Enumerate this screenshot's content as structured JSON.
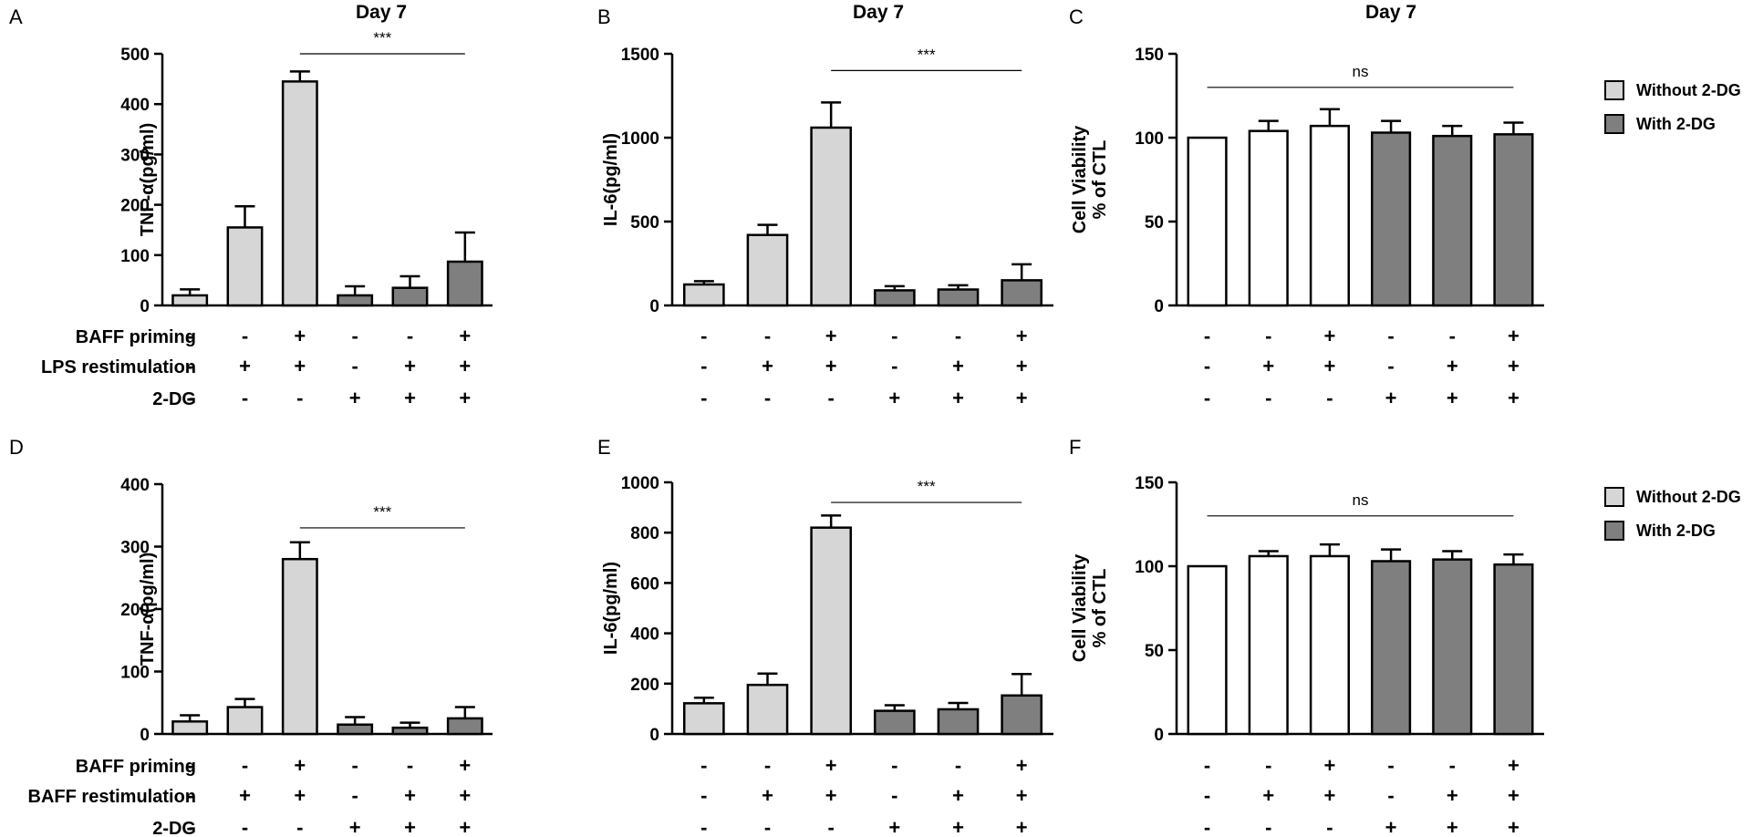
{
  "row_labels": {
    "top": [
      "BAFF priming",
      "LPS restimulation",
      "2-DG"
    ],
    "bottom": [
      "BAFF priming",
      "BAFF restimulation",
      "2-DG"
    ]
  },
  "legend": [
    {
      "label": "Without 2-DG",
      "color": "#d6d6d6"
    },
    {
      "label": "With 2-DG",
      "color": "#7f7f7f"
    }
  ],
  "colors": {
    "light": "#d6d6d6",
    "dark": "#7f7f7f",
    "white": "#ffffff",
    "stroke": "#000000"
  },
  "chart_data": [
    {
      "panel": "A",
      "type": "bar",
      "title": "Day 7",
      "ylabel": "TNF-α(pg/ml)",
      "ylim": [
        0,
        500
      ],
      "yticks": [
        0,
        100,
        200,
        300,
        400,
        500
      ],
      "values": [
        20,
        155,
        445,
        20,
        35,
        87
      ],
      "errors": [
        12,
        42,
        20,
        18,
        23,
        58
      ],
      "fills": [
        "light",
        "light",
        "light",
        "dark",
        "dark",
        "dark"
      ],
      "treatments": [
        [
          "-",
          "-",
          "+",
          "-",
          "-",
          "+"
        ],
        [
          "-",
          "+",
          "+",
          "-",
          "+",
          "+"
        ],
        [
          "-",
          "-",
          "-",
          "+",
          "+",
          "+"
        ]
      ],
      "significance": {
        "label": "***",
        "from": 2,
        "to": 5,
        "y": 500
      }
    },
    {
      "panel": "B",
      "type": "bar",
      "title": "Day 7",
      "ylabel": "IL-6(pg/ml)",
      "ylim": [
        0,
        1500
      ],
      "yticks": [
        0,
        500,
        1000,
        1500
      ],
      "values": [
        125,
        420,
        1060,
        90,
        95,
        150
      ],
      "errors": [
        20,
        60,
        150,
        25,
        25,
        95
      ],
      "fills": [
        "light",
        "light",
        "light",
        "dark",
        "dark",
        "dark"
      ],
      "treatments": [
        [
          "-",
          "-",
          "+",
          "-",
          "-",
          "+"
        ],
        [
          "-",
          "+",
          "+",
          "-",
          "+",
          "+"
        ],
        [
          "-",
          "-",
          "-",
          "+",
          "+",
          "+"
        ]
      ],
      "significance": {
        "label": "***",
        "from": 2,
        "to": 5,
        "y": 1400
      }
    },
    {
      "panel": "C",
      "type": "bar",
      "title": "Day 7",
      "ylabel": "Cell Viability",
      "ylabel2": "% of CTL",
      "ylim": [
        0,
        150
      ],
      "yticks": [
        0,
        50,
        100,
        150
      ],
      "values": [
        100,
        104,
        107,
        103,
        101,
        102
      ],
      "errors": [
        0,
        6,
        10,
        7,
        6,
        7
      ],
      "fills": [
        "white",
        "white",
        "white",
        "dark",
        "dark",
        "dark"
      ],
      "treatments": [
        [
          "-",
          "-",
          "+",
          "-",
          "-",
          "+"
        ],
        [
          "-",
          "+",
          "+",
          "-",
          "+",
          "+"
        ],
        [
          "-",
          "-",
          "-",
          "+",
          "+",
          "+"
        ]
      ],
      "significance": {
        "label": "ns",
        "from": 0,
        "to": 5,
        "y": 130
      }
    },
    {
      "panel": "D",
      "type": "bar",
      "title": "",
      "ylabel": "TNF-α(pg/ml)",
      "ylim": [
        0,
        400
      ],
      "yticks": [
        0,
        100,
        200,
        300,
        400
      ],
      "values": [
        20,
        43,
        280,
        15,
        10,
        25
      ],
      "errors": [
        10,
        13,
        27,
        12,
        8,
        18
      ],
      "fills": [
        "light",
        "light",
        "light",
        "dark",
        "dark",
        "dark"
      ],
      "treatments": [
        [
          "-",
          "-",
          "+",
          "-",
          "-",
          "+"
        ],
        [
          "-",
          "+",
          "+",
          "-",
          "+",
          "+"
        ],
        [
          "-",
          "-",
          "-",
          "+",
          "+",
          "+"
        ]
      ],
      "significance": {
        "label": "***",
        "from": 2,
        "to": 5,
        "y": 330
      }
    },
    {
      "panel": "E",
      "type": "bar",
      "title": "",
      "ylabel": "IL-6(pg/ml)",
      "ylim": [
        0,
        1000
      ],
      "yticks": [
        0,
        200,
        400,
        600,
        800,
        1000
      ],
      "values": [
        122,
        195,
        820,
        92,
        98,
        153
      ],
      "errors": [
        22,
        45,
        48,
        22,
        25,
        85
      ],
      "fills": [
        "light",
        "light",
        "light",
        "dark",
        "dark",
        "dark"
      ],
      "treatments": [
        [
          "-",
          "-",
          "+",
          "-",
          "-",
          "+"
        ],
        [
          "-",
          "+",
          "+",
          "-",
          "+",
          "+"
        ],
        [
          "-",
          "-",
          "-",
          "+",
          "+",
          "+"
        ]
      ],
      "significance": {
        "label": "***",
        "from": 2,
        "to": 5,
        "y": 920
      }
    },
    {
      "panel": "F",
      "type": "bar",
      "title": "",
      "ylabel": "Cell Viability",
      "ylabel2": "% of CTL",
      "ylim": [
        0,
        150
      ],
      "yticks": [
        0,
        50,
        100,
        150
      ],
      "values": [
        100,
        106,
        106,
        103,
        104,
        101
      ],
      "errors": [
        0,
        3,
        7,
        7,
        5,
        6
      ],
      "fills": [
        "white",
        "white",
        "white",
        "dark",
        "dark",
        "dark"
      ],
      "treatments": [
        [
          "-",
          "-",
          "+",
          "-",
          "-",
          "+"
        ],
        [
          "-",
          "+",
          "+",
          "-",
          "+",
          "+"
        ],
        [
          "-",
          "-",
          "-",
          "+",
          "+",
          "+"
        ]
      ],
      "significance": {
        "label": "ns",
        "from": 0,
        "to": 5,
        "y": 130
      }
    }
  ]
}
